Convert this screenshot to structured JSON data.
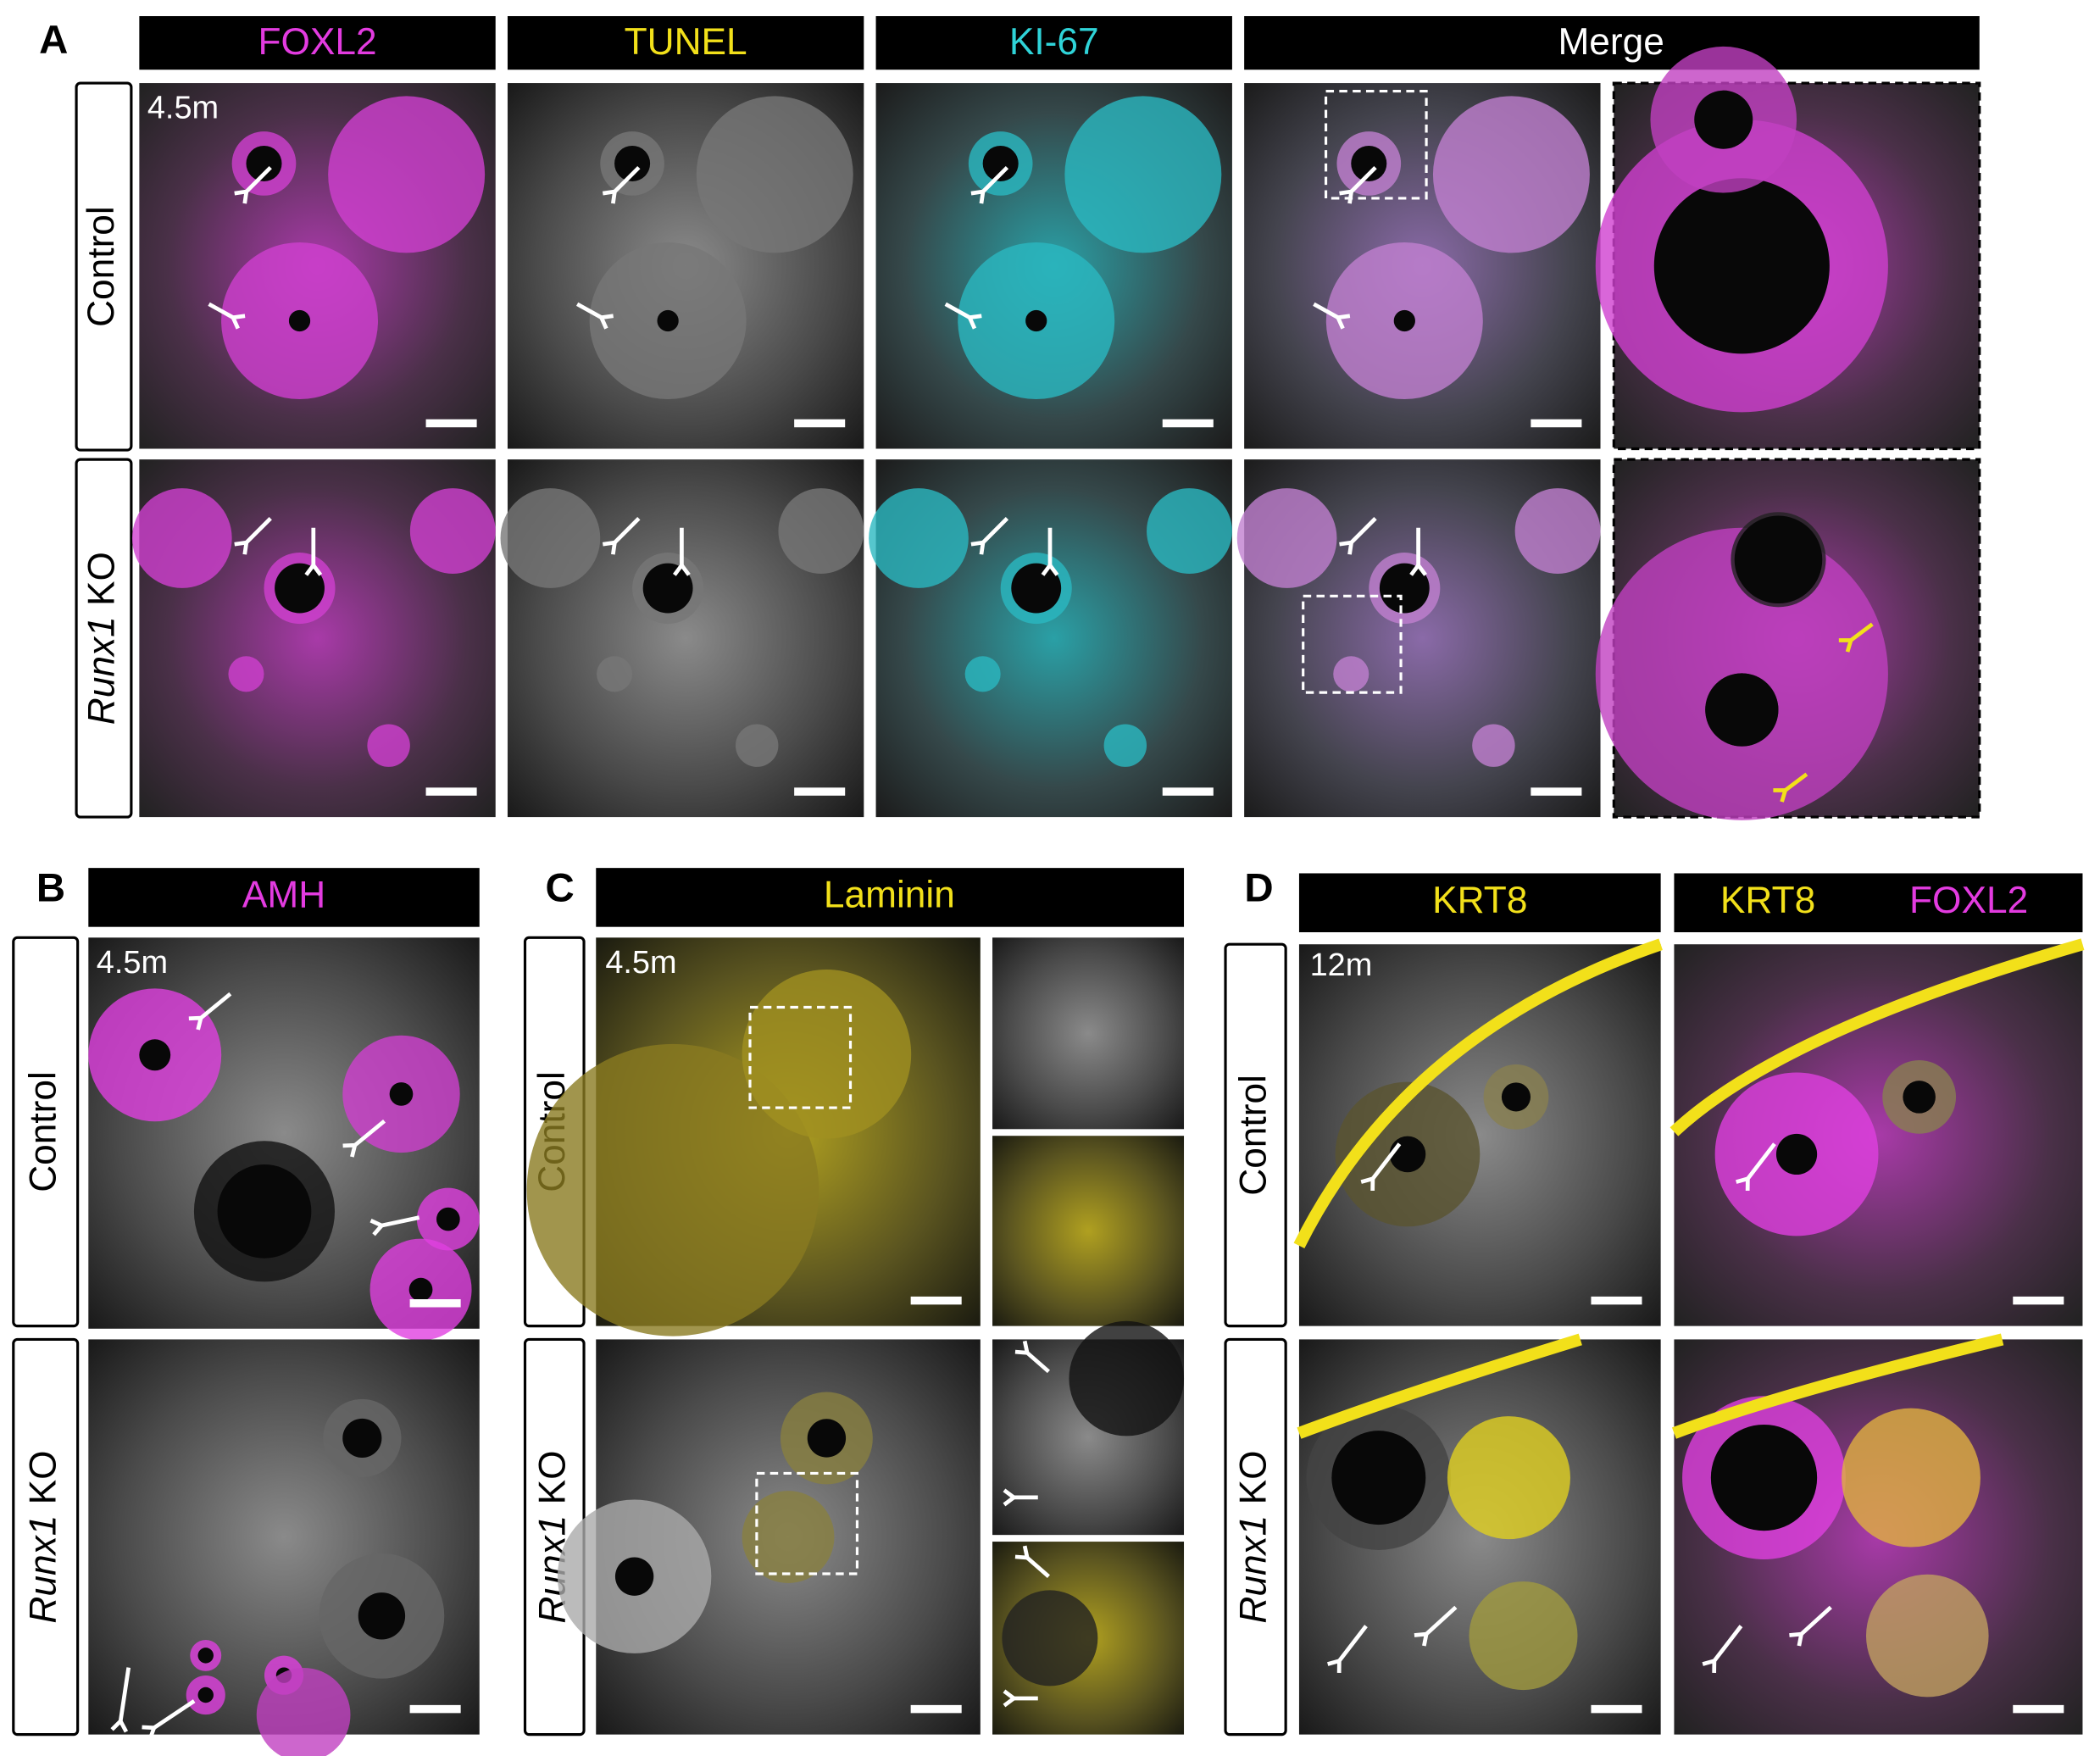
{
  "panel_a": {
    "letter": "A",
    "headers": [
      "FOXL2",
      "TUNEL",
      "KI-67",
      "Merge"
    ],
    "control": "Control",
    "ko_gene": "Runx1",
    "ko_suffix": "KO",
    "timepoint": "4.5m"
  },
  "panel_b": {
    "letter": "B",
    "header": "AMH",
    "control": "Control",
    "ko_gene": "Runx1",
    "ko_suffix": "KO",
    "timepoint": "4.5m"
  },
  "panel_c": {
    "letter": "C",
    "header": "Laminin",
    "control": "Control",
    "ko_gene": "Runx1",
    "ko_suffix": "KO",
    "timepoint": "4.5m"
  },
  "panel_d": {
    "letter": "D",
    "headers": [
      "KRT8",
      "KRT8",
      "FOXL2"
    ],
    "control": "Control",
    "ko_gene": "Runx1",
    "ko_suffix": "KO",
    "timepoint": "12m"
  }
}
